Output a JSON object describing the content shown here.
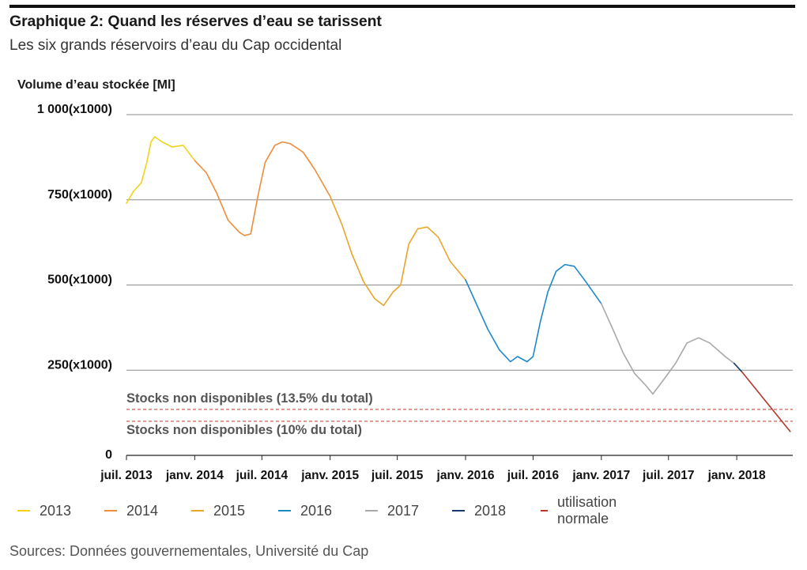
{
  "header": {
    "title": "Graphique 2: Quand les réserves d’eau se tarissent",
    "subtitle": "Les six grands réservoirs d’eau du Cap occidental"
  },
  "source": "Sources: Données gouvernementales, Université du Cap",
  "chart_data": {
    "type": "line",
    "ylabel": "Volume d’eau stockée [Ml]",
    "ylim": [
      0,
      1000
    ],
    "xlim": [
      "2013-07-01",
      "2018-06-01"
    ],
    "y_ticks": [
      {
        "value": 0,
        "label": "0"
      },
      {
        "value": 250,
        "label": "250(x1000)"
      },
      {
        "value": 500,
        "label": "500(x1000)"
      },
      {
        "value": 750,
        "label": "750(x1000)"
      },
      {
        "value": 1000,
        "label": "1 000(x1000)"
      }
    ],
    "x_ticks": [
      {
        "date": "2013-07-01",
        "label": "juil. 2013"
      },
      {
        "date": "2014-01-01",
        "label": "janv. 2014"
      },
      {
        "date": "2014-07-01",
        "label": "juil. 2014"
      },
      {
        "date": "2015-01-01",
        "label": "janv. 2015"
      },
      {
        "date": "2015-07-01",
        "label": "juil. 2015"
      },
      {
        "date": "2016-01-01",
        "label": "janv. 2016"
      },
      {
        "date": "2016-07-01",
        "label": "juil. 2016"
      },
      {
        "date": "2017-01-01",
        "label": "janv. 2017"
      },
      {
        "date": "2017-07-01",
        "label": "juil. 2017"
      },
      {
        "date": "2018-01-01",
        "label": "janv. 2018"
      }
    ],
    "grid": true,
    "legend_position": "bottom",
    "series": [
      {
        "name": "2013",
        "color": "#f2d21b",
        "points": [
          [
            "2013-07-01",
            740
          ],
          [
            "2013-07-20",
            775
          ],
          [
            "2013-08-10",
            800
          ],
          [
            "2013-08-25",
            860
          ],
          [
            "2013-09-05",
            920
          ],
          [
            "2013-09-15",
            935
          ],
          [
            "2013-10-05",
            920
          ],
          [
            "2013-11-01",
            905
          ],
          [
            "2013-12-01",
            910
          ],
          [
            "2014-01-01",
            865
          ]
        ]
      },
      {
        "name": "2014",
        "color": "#f08c3a",
        "points": [
          [
            "2014-01-01",
            865
          ],
          [
            "2014-02-01",
            830
          ],
          [
            "2014-03-01",
            770
          ],
          [
            "2014-04-01",
            690
          ],
          [
            "2014-05-01",
            655
          ],
          [
            "2014-05-15",
            645
          ],
          [
            "2014-06-01",
            650
          ],
          [
            "2014-06-20",
            760
          ],
          [
            "2014-07-10",
            860
          ],
          [
            "2014-08-05",
            910
          ],
          [
            "2014-08-25",
            920
          ],
          [
            "2014-09-15",
            915
          ],
          [
            "2014-10-20",
            890
          ],
          [
            "2014-11-20",
            840
          ],
          [
            "2015-01-01",
            760
          ]
        ]
      },
      {
        "name": "2015",
        "color": "#e8a52a",
        "points": [
          [
            "2015-01-01",
            760
          ],
          [
            "2015-02-01",
            680
          ],
          [
            "2015-03-01",
            590
          ],
          [
            "2015-04-01",
            510
          ],
          [
            "2015-05-01",
            460
          ],
          [
            "2015-05-25",
            440
          ],
          [
            "2015-06-20",
            480
          ],
          [
            "2015-07-10",
            500
          ],
          [
            "2015-08-01",
            620
          ],
          [
            "2015-08-25",
            665
          ],
          [
            "2015-09-20",
            670
          ],
          [
            "2015-10-20",
            640
          ],
          [
            "2015-11-20",
            570
          ],
          [
            "2016-01-01",
            515
          ]
        ]
      },
      {
        "name": "2016",
        "color": "#1e88c8",
        "points": [
          [
            "2016-01-01",
            515
          ],
          [
            "2016-02-01",
            440
          ],
          [
            "2016-03-01",
            370
          ],
          [
            "2016-04-01",
            310
          ],
          [
            "2016-05-01",
            275
          ],
          [
            "2016-05-20",
            290
          ],
          [
            "2016-06-15",
            275
          ],
          [
            "2016-07-01",
            290
          ],
          [
            "2016-07-20",
            390
          ],
          [
            "2016-08-10",
            480
          ],
          [
            "2016-09-01",
            540
          ],
          [
            "2016-09-25",
            560
          ],
          [
            "2016-10-20",
            555
          ],
          [
            "2016-11-20",
            510
          ],
          [
            "2017-01-01",
            445
          ]
        ]
      },
      {
        "name": "2017",
        "color": "#a9a9a9",
        "points": [
          [
            "2017-01-01",
            445
          ],
          [
            "2017-02-01",
            370
          ],
          [
            "2017-03-01",
            300
          ],
          [
            "2017-04-01",
            240
          ],
          [
            "2017-05-01",
            205
          ],
          [
            "2017-05-20",
            180
          ],
          [
            "2017-06-20",
            225
          ],
          [
            "2017-07-20",
            270
          ],
          [
            "2017-08-20",
            330
          ],
          [
            "2017-09-20",
            345
          ],
          [
            "2017-10-20",
            330
          ],
          [
            "2017-12-01",
            290
          ],
          [
            "2017-12-25",
            270
          ]
        ]
      },
      {
        "name": "2018",
        "color": "#123a73",
        "points": [
          [
            "2017-12-25",
            270
          ],
          [
            "2018-01-15",
            245
          ]
        ]
      },
      {
        "name": "utilisation normale",
        "color": "#b5382a",
        "points": [
          [
            "2018-01-15",
            245
          ],
          [
            "2018-05-25",
            70
          ]
        ]
      }
    ],
    "reference_lines": [
      {
        "value": 135,
        "label": "Stocks non disponibles (13.5% du total)",
        "color": "#c0392b"
      },
      {
        "value": 100,
        "label": "Stocks non disponibles (10% du total)",
        "color": "#c0392b"
      }
    ]
  }
}
